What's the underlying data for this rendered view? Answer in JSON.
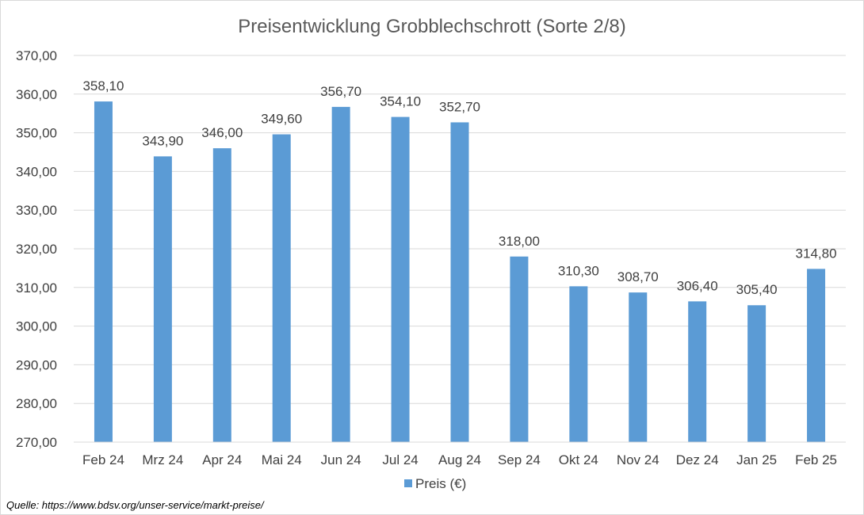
{
  "chart_data": {
    "type": "bar",
    "title": "Preisentwicklung Grobblechschrott (Sorte 2/8)",
    "categories": [
      "Feb 24",
      "Mrz 24",
      "Apr 24",
      "Mai 24",
      "Jun 24",
      "Jul 24",
      "Aug 24",
      "Sep 24",
      "Okt 24",
      "Nov 24",
      "Dez 24",
      "Jan 25",
      "Feb 25"
    ],
    "series": [
      {
        "name": "Preis (€)",
        "values": [
          358.1,
          343.9,
          346.0,
          349.6,
          356.7,
          354.1,
          352.7,
          318.0,
          310.3,
          308.7,
          306.4,
          305.4,
          314.8
        ],
        "labels": [
          "358,10",
          "343,90",
          "346,00",
          "349,60",
          "356,70",
          "354,10",
          "352,70",
          "318,00",
          "310,30",
          "308,70",
          "306,40",
          "305,40",
          "314,80"
        ]
      }
    ],
    "yticks": [
      "270,00",
      "280,00",
      "290,00",
      "300,00",
      "310,00",
      "320,00",
      "330,00",
      "340,00",
      "350,00",
      "360,00",
      "370,00"
    ],
    "ylim": [
      270,
      370
    ],
    "xlabel": "",
    "ylabel": "",
    "grid": true,
    "legend_position": "bottom",
    "bar_color": "#5b9bd5"
  },
  "source_note": "Quelle: https://www.bdsv.org/unser-service/markt-preise/"
}
